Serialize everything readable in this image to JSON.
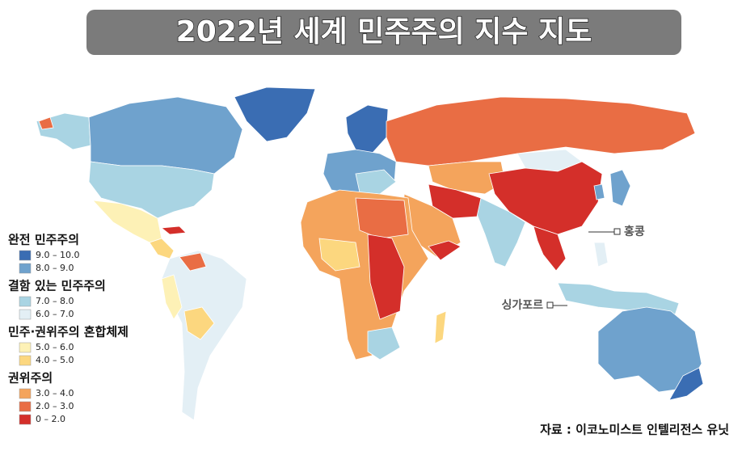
{
  "title": "2022년 세계 민주주의 지수 지도",
  "legend": [
    {
      "group": "완전 민주주의",
      "items": [
        {
          "label": "9.0 – 10.0",
          "color": "#3a6db3"
        },
        {
          "label": "8.0 – 9.0",
          "color": "#6fa2cd"
        }
      ]
    },
    {
      "group": "결함 있는 민주주의",
      "items": [
        {
          "label": "7.0 – 8.0",
          "color": "#a9d4e3"
        },
        {
          "label": "6.0 – 7.0",
          "color": "#e3eff5"
        }
      ]
    },
    {
      "group": "민주·권위주의 혼합체제",
      "items": [
        {
          "label": "5.0 – 6.0",
          "color": "#fdf1b6"
        },
        {
          "label": "4.0 – 5.0",
          "color": "#fcd77f"
        }
      ]
    },
    {
      "group": "권위주의",
      "items": [
        {
          "label": "3.0 – 4.0",
          "color": "#f4a45c"
        },
        {
          "label": "2.0 – 3.0",
          "color": "#e96d44"
        },
        {
          "label": "0 – 2.0",
          "color": "#d42f2a"
        }
      ]
    }
  ],
  "callouts": [
    {
      "label": "홍콩"
    },
    {
      "label": "싱가포르"
    }
  ],
  "source": "자료 : 이코노미스트 인텔리전스 유닛"
}
